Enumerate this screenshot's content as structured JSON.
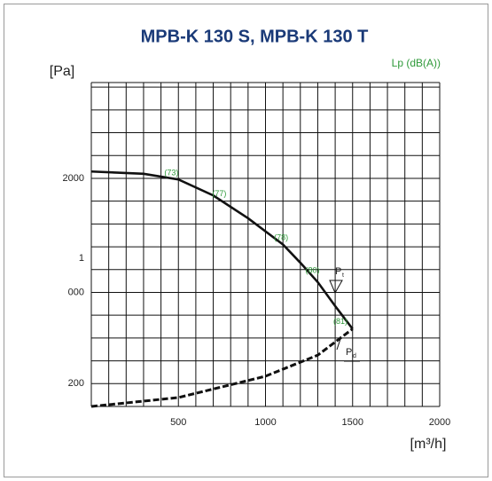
{
  "chart_data": {
    "type": "line",
    "title": "MPB-K 130 S, MPB-K 130 T",
    "y_label": "[Pa]",
    "x_label": "[m³/h]",
    "right_label": "Lp (dB(A))",
    "xlim": [
      0,
      2000
    ],
    "ylim": [
      0,
      2840
    ],
    "xticks": [
      500,
      1000,
      1500,
      2000
    ],
    "yticks": [
      200,
      {
        "value": 1000,
        "label": "000"
      },
      {
        "value": 1300,
        "label": "1"
      },
      2000
    ],
    "grid": true,
    "grid_step": {
      "x": 100,
      "y": 200
    },
    "series": [
      {
        "color": "#111111",
        "style": "solid",
        "x": [
          0,
          300,
          500,
          700,
          900,
          1100,
          1200,
          1300,
          1400,
          1500
        ],
        "values": [
          2060,
          2040,
          1990,
          1850,
          1650,
          1420,
          1260,
          1090,
          880,
          680
        ]
      },
      {
        "color": "#111111",
        "style": "dashed",
        "x": [
          0,
          500,
          1000,
          1300,
          1500
        ],
        "values": [
          0,
          78,
          265,
          450,
          680
        ]
      }
    ],
    "noise_labels": [
      {
        "text": "(73)",
        "x": 460
      },
      {
        "text": "(77)",
        "x": 735
      },
      {
        "text": "(78)",
        "x": 1090
      },
      {
        "text": "(80)",
        "x": 1270
      },
      {
        "text": "(81)",
        "x": 1430
      }
    ],
    "annotations": [
      {
        "main": "P",
        "sub": "t"
      },
      {
        "main": "P",
        "sub": "d"
      }
    ]
  }
}
